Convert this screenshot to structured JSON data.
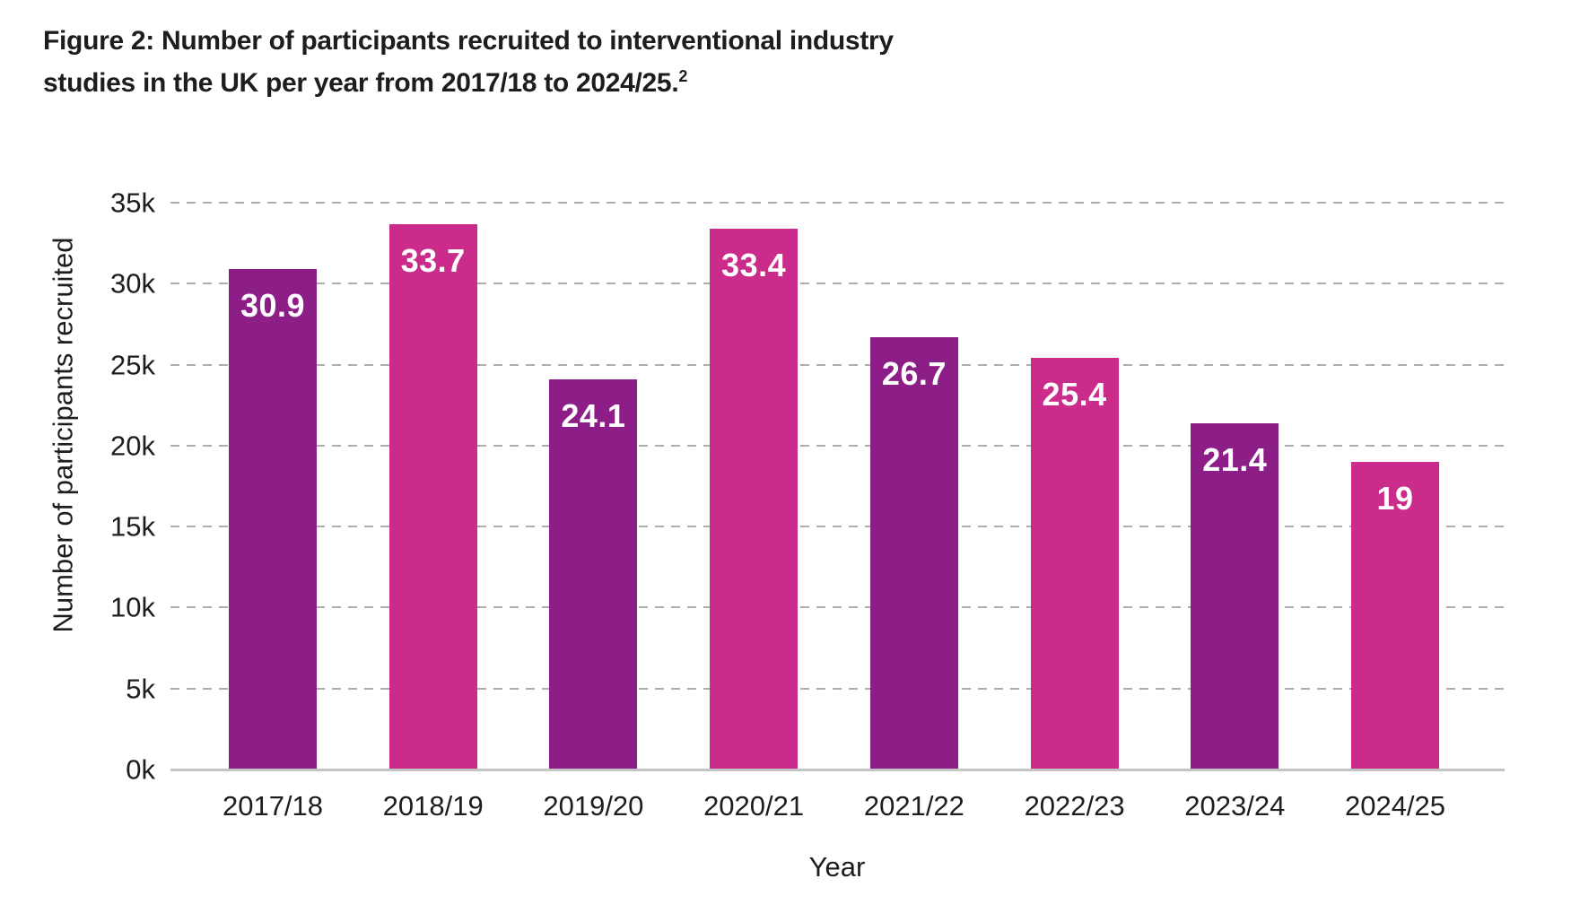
{
  "figure_title": {
    "line1": "Figure 2: Number of participants recruited to interventional industry",
    "line2": "studies in the UK per year from 2017/18 to 2024/25.",
    "superscript": "2"
  },
  "chart_data": {
    "type": "bar",
    "title": "Figure 2: Number of participants recruited to interventional industry studies in the UK per year from 2017/18 to 2024/25.²",
    "categories": [
      "2017/18",
      "2018/19",
      "2019/20",
      "2020/21",
      "2021/22",
      "2022/23",
      "2023/24",
      "2024/25"
    ],
    "values": [
      30.9,
      33.7,
      24.1,
      33.4,
      26.7,
      25.4,
      21.4,
      19
    ],
    "value_labels": [
      "30.9",
      "33.7",
      "24.1",
      "33.4",
      "26.7",
      "25.4",
      "21.4",
      "19"
    ],
    "unit": "thousands of participants",
    "xlabel": "Year",
    "ylabel": "Number of participants recruited",
    "y_ticks": [
      {
        "value": 0,
        "label": "0k"
      },
      {
        "value": 5,
        "label": "5k"
      },
      {
        "value": 10,
        "label": "10k"
      },
      {
        "value": 15,
        "label": "15k"
      },
      {
        "value": 20,
        "label": "20k"
      },
      {
        "value": 25,
        "label": "25k"
      },
      {
        "value": 30,
        "label": "30k"
      },
      {
        "value": 35,
        "label": "35k"
      }
    ],
    "ylim": [
      0,
      35
    ],
    "grid": "horizontal-dashed",
    "legend": "none",
    "colors": {
      "bar_dark_purple": "#8e1e87",
      "bar_pink": "#cb2b8a",
      "bar_sequence": [
        "#8e1e87",
        "#cb2b8a",
        "#8e1e87",
        "#cb2b8a",
        "#8e1e87",
        "#cb2b8a",
        "#8e1e87",
        "#cb2b8a"
      ],
      "value_label_color": "#ffffff",
      "gridline_color": "#adadad",
      "axis_line_color": "#c4c4c4",
      "text_color": "#1d1d1b"
    }
  }
}
